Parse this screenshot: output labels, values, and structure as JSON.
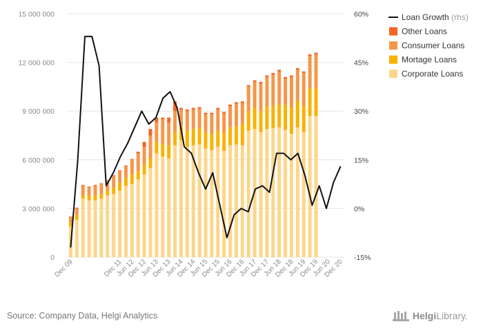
{
  "chart_data": {
    "type": "bar",
    "stacked": true,
    "categories": [
      "Dec 09",
      "Mar 10",
      "Jun 10",
      "Sep 10",
      "Dec 10",
      "Mar 11",
      "Jun 11",
      "Sep 11",
      "Dec 11",
      "Mar 12",
      "Jun 12",
      "Sep 12",
      "Dec 12",
      "Mar 13",
      "Jun 13",
      "Sep 13",
      "Dec 13",
      "Mar 14",
      "Jun 14",
      "Sep 14",
      "Dec 14",
      "Mar 15",
      "Jun 15",
      "Sep 15",
      "Dec 15",
      "Mar 16",
      "Jun 16",
      "Sep 16",
      "Dec 16",
      "Mar 17",
      "Jun 17",
      "Sep 17",
      "Dec 17",
      "Mar 18",
      "Jun 18",
      "Sep 18",
      "Dec 18",
      "Mar 19",
      "Jun 19",
      "Sep 19",
      "Dec 19",
      "Mar 20",
      "Jun 20",
      "Sep 20",
      "Dec 20"
    ],
    "x_tick_labels": [
      "Dec 09",
      "Dec 11",
      "Jun 12",
      "Dec 12",
      "Jun 13",
      "Dec 13",
      "Jun 14",
      "Dec 14",
      "Jun 15",
      "Dec 15",
      "Jun 16",
      "Dec 16",
      "Jun 17",
      "Dec 17",
      "Jun 18",
      "Dec 18",
      "Jun 19",
      "Dec 19",
      "Jun 20",
      "Dec 20"
    ],
    "series": [
      {
        "name": "Corporate Loans",
        "color": "#fdd68a",
        "values": [
          1900000,
          2300000,
          3600000,
          3500000,
          3500000,
          3600000,
          3800000,
          3900000,
          4100000,
          4400000,
          4500000,
          4800000,
          5100000,
          5500000,
          6400000,
          6200000,
          6100000,
          6900000,
          7200000,
          6800000,
          6900000,
          6950000,
          6700000,
          6600000,
          6800000,
          6550000,
          6900000,
          6950000,
          6900000,
          7800000,
          7900000,
          7700000,
          7900000,
          7950000,
          8000000,
          7850000,
          7600000,
          8000000,
          7700000,
          8700000,
          8700000,
          0,
          0,
          0,
          0
        ]
      },
      {
        "name": "Mortage Loans",
        "color": "#f9b200",
        "values": [
          200000,
          300000,
          200000,
          300000,
          300000,
          300000,
          300000,
          400000,
          500000,
          500000,
          600000,
          500000,
          600000,
          600000,
          700000,
          800000,
          800000,
          800000,
          900000,
          1000000,
          1000000,
          1000000,
          1000000,
          1000000,
          1000000,
          1100000,
          1100000,
          1100000,
          1300000,
          1200000,
          1300000,
          1300000,
          1400000,
          1400000,
          1450000,
          1550000,
          1600000,
          1650000,
          1650000,
          1700000,
          1700000,
          0,
          0,
          0,
          0
        ]
      },
      {
        "name": "Consumer Loans",
        "color": "#f6964a",
        "values": [
          350000,
          400000,
          600000,
          500000,
          600000,
          600000,
          600000,
          700000,
          700000,
          700000,
          900000,
          1100000,
          1100000,
          1400000,
          1200000,
          1500000,
          1400000,
          1300000,
          1000000,
          1200000,
          1200000,
          1200000,
          1100000,
          1200000,
          1300000,
          1200000,
          1300000,
          1400000,
          1300000,
          1500000,
          1600000,
          1700000,
          1800000,
          1900000,
          2000000,
          1600000,
          1900000,
          1900000,
          2000000,
          2000000,
          2100000,
          0,
          0,
          0,
          0
        ]
      },
      {
        "name": "Other Loans",
        "color": "#f26522",
        "values": [
          50000,
          50000,
          50000,
          50000,
          50000,
          50000,
          50000,
          50000,
          50000,
          50000,
          50000,
          100000,
          300000,
          400000,
          300000,
          100000,
          300000,
          600000,
          100000,
          100000,
          100000,
          100000,
          100000,
          100000,
          100000,
          100000,
          100000,
          100000,
          100000,
          100000,
          100000,
          100000,
          100000,
          100000,
          100000,
          100000,
          100000,
          100000,
          100000,
          100000,
          100000,
          0,
          0,
          0,
          0
        ]
      }
    ],
    "line_series": {
      "name": "Loan Growth",
      "suffix": "(rhs)",
      "color": "#111111",
      "axis": "right",
      "values": [
        -12,
        15,
        53,
        53,
        44,
        7,
        11,
        16,
        20,
        25,
        30,
        26,
        28,
        34,
        36,
        31,
        19,
        17,
        11,
        6,
        11,
        1,
        -9,
        -2,
        0,
        -1,
        6,
        7,
        5,
        17,
        17,
        15,
        17,
        10,
        1,
        7,
        0,
        8,
        13
      ]
    },
    "ylim": [
      0,
      15000000
    ],
    "y_ticks": [
      "0",
      "3 000 000",
      "6 000 000",
      "9 000 000",
      "12 000 000",
      "15 000 000"
    ],
    "y2lim": [
      -15,
      60
    ],
    "y2_ticks": [
      "-15%",
      "0%",
      "15%",
      "30%",
      "45%",
      "60%"
    ],
    "grid": true,
    "legend_position": "top-right",
    "legend": [
      {
        "label": "Loan Growth",
        "suffix": "(rhs)",
        "type": "line",
        "color": "#111111"
      },
      {
        "label": "Other Loans",
        "type": "box",
        "color": "#f26522"
      },
      {
        "label": "Consumer Loans",
        "type": "box",
        "color": "#f6964a"
      },
      {
        "label": "Mortage Loans",
        "type": "box",
        "color": "#f9b200"
      },
      {
        "label": "Corporate Loans",
        "type": "box",
        "color": "#fdd68a"
      }
    ]
  },
  "footer": {
    "source": "Source: Company Data, Helgi Analytics",
    "logo_prefix": "Helgi",
    "logo_suffix": "Library."
  }
}
